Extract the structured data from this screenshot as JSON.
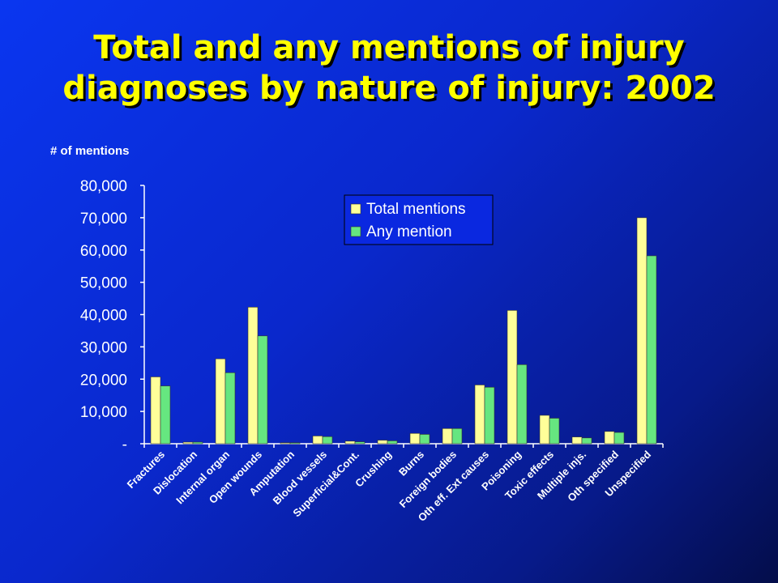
{
  "title": {
    "line1": "Total and any mentions of injury",
    "line2": "diagnoses by nature of injury: 2002"
  },
  "chart_data": {
    "type": "bar",
    "ylabel": "# of mentions",
    "ylim": [
      0,
      80000
    ],
    "yticks": [
      {
        "value": 80000,
        "label": "80,000"
      },
      {
        "value": 70000,
        "label": "70,000"
      },
      {
        "value": 60000,
        "label": "60,000"
      },
      {
        "value": 50000,
        "label": "50,000"
      },
      {
        "value": 40000,
        "label": "40,000"
      },
      {
        "value": 30000,
        "label": "30,000"
      },
      {
        "value": 20000,
        "label": "20,000"
      },
      {
        "value": 10000,
        "label": "10,000"
      },
      {
        "value": 0,
        "label": "-"
      }
    ],
    "categories": [
      "Fractures",
      "Dislocation",
      "Internal organ",
      "Open wounds",
      "Amputation",
      "Blood vessels",
      "Superficial&Cont.",
      "Crushing",
      "Burns",
      "Foreign bodies",
      "Oth eff. Ext causes",
      "Poisoning",
      "Toxic effects",
      "Multiple injs.",
      "Oth specified",
      "Unspecified"
    ],
    "series": [
      {
        "name": "Total mentions",
        "color": "#ffff99",
        "values": [
          20700,
          500,
          26300,
          42300,
          300,
          2400,
          800,
          1100,
          3200,
          4700,
          18200,
          41300,
          8800,
          2100,
          3800,
          70000
        ]
      },
      {
        "name": "Any mention",
        "color": "#66e680",
        "values": [
          17900,
          500,
          22000,
          33400,
          300,
          2200,
          600,
          900,
          2900,
          4700,
          17500,
          24500,
          7900,
          1800,
          3500,
          58200
        ]
      }
    ],
    "legend_position": "top-right",
    "grid": false
  }
}
